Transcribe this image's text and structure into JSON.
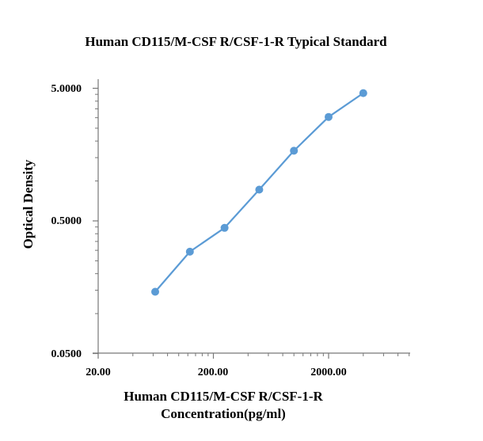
{
  "chart_data": {
    "type": "line",
    "title": "Human CD115/M-CSF R/CSF-1-R Typical Standard",
    "xlabel": [
      "Human CD115/M-CSF R/CSF-1-R",
      "Concentration(pg/ml)"
    ],
    "ylabel": "Optical Density",
    "xscale": "log",
    "yscale": "log",
    "xlim": [
      20,
      10000
    ],
    "ylim": [
      0.05,
      8
    ],
    "x_tick_labels": [
      "20.00",
      "200.00",
      "2000.00"
    ],
    "y_tick_labels": [
      "0.0500",
      "0.5000",
      "5.0000"
    ],
    "grid": false,
    "legend": "none",
    "series_color": "#5B9BD5",
    "series": [
      {
        "x": [
          62.5,
          125,
          250,
          500,
          1000,
          2000,
          4000
        ],
        "y": [
          0.146,
          0.293,
          0.443,
          0.86,
          1.69,
          3.04,
          4.6
        ]
      }
    ]
  }
}
